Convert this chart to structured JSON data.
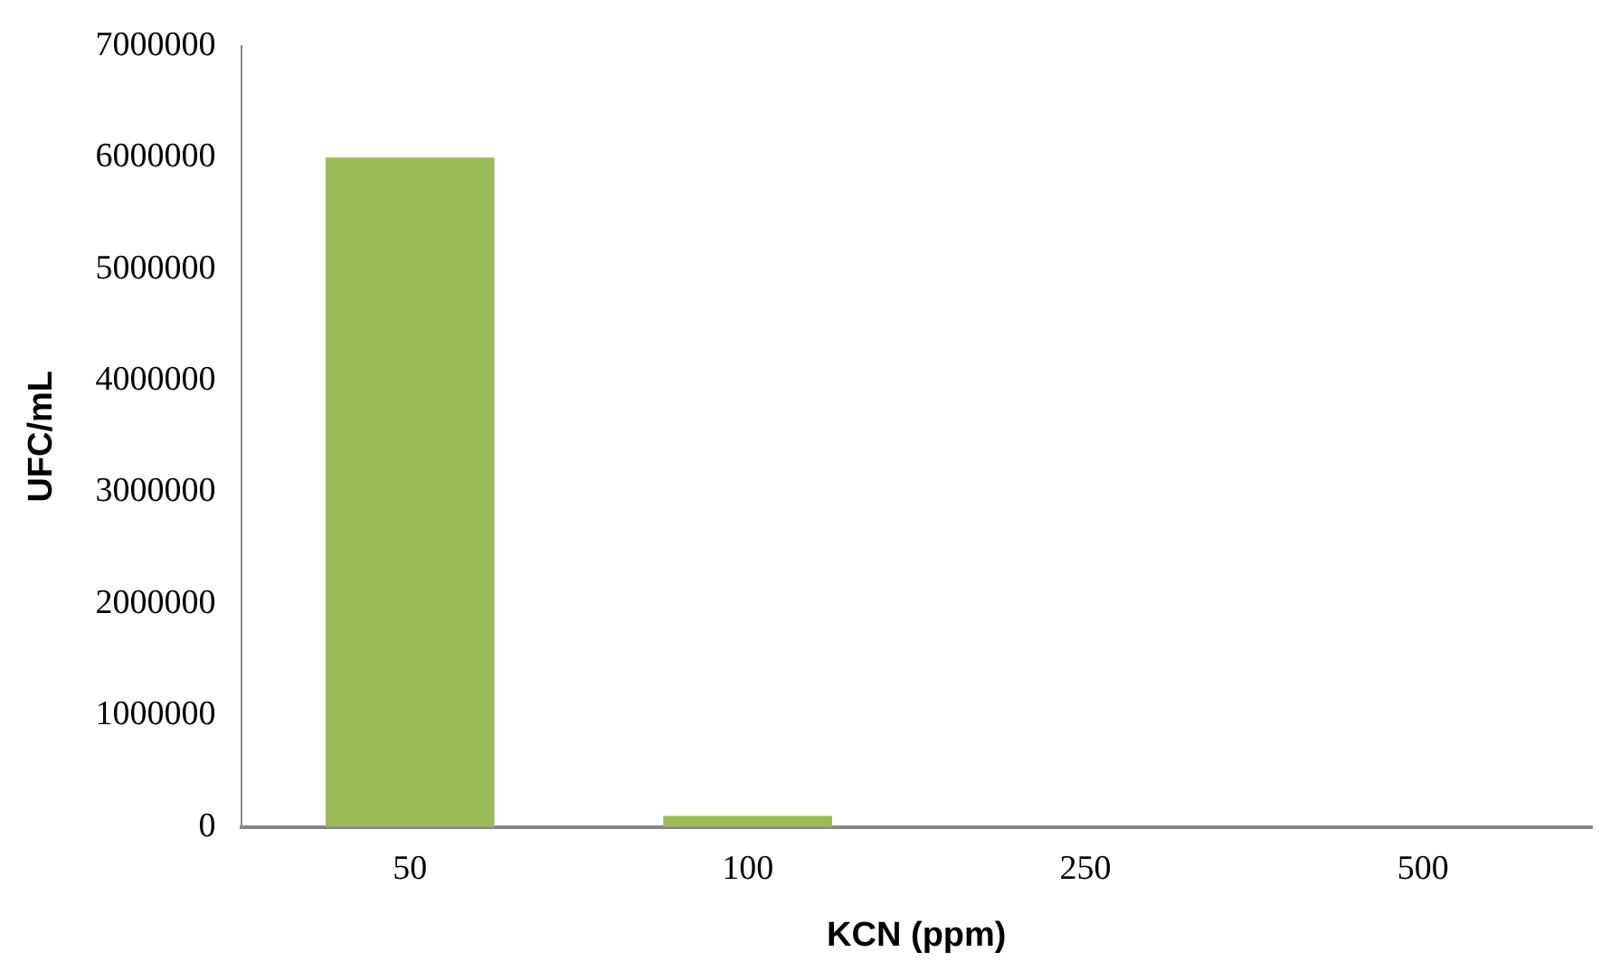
{
  "chart_data": {
    "type": "bar",
    "xlabel": "KCN (ppm)",
    "ylabel": "UFC/mL",
    "categories": [
      "50",
      "100",
      "250",
      "500"
    ],
    "values": [
      6000000,
      100000,
      0,
      0
    ],
    "color": "#9bbb59",
    "ylim": [
      0,
      7000000
    ],
    "yticks": [
      0,
      1000000,
      2000000,
      3000000,
      4000000,
      5000000,
      6000000,
      7000000
    ],
    "grid": false,
    "legend": false
  }
}
